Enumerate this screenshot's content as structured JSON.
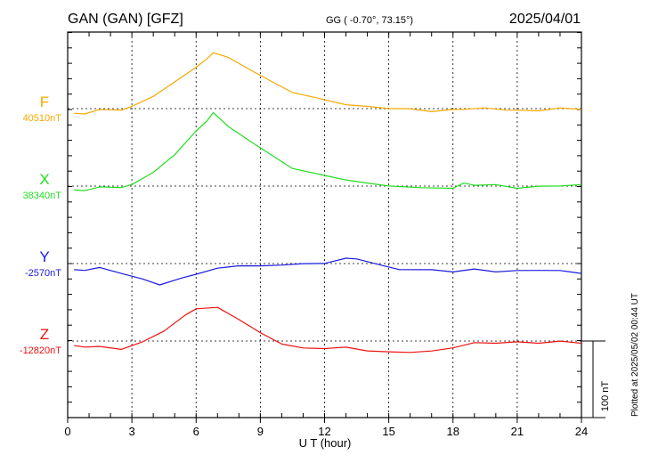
{
  "header": {
    "station": "GAN (GAN)  [GFZ]",
    "coords": "GG ( -0.70°,  73.15°)",
    "date": "2025/04/01"
  },
  "footer": {
    "plotted": "Plotted at 2025/05/02 00:44 UT",
    "scale_label": "100 nT"
  },
  "chart_data": {
    "type": "line",
    "xlabel": "U T (hour)",
    "xlim": [
      0,
      24
    ],
    "xticks": [
      "0",
      "3",
      "6",
      "9",
      "12",
      "15",
      "18",
      "21",
      "24"
    ],
    "scale_nT": 100,
    "grid": true,
    "series": [
      {
        "name": "F",
        "baseline_label": "40510nT",
        "color": "#f5a800",
        "x": [
          0.3,
          0.8,
          1.5,
          2.5,
          3,
          4,
          5,
          6,
          6.5,
          6.8,
          7.5,
          8.5,
          9.5,
          10.5,
          11.5,
          13,
          14,
          15,
          16,
          17,
          18,
          18.5,
          19.5,
          20.5,
          21,
          22,
          23,
          24
        ],
        "y": [
          -7,
          -6,
          -2,
          -1,
          2,
          17,
          34,
          55,
          64,
          74,
          66,
          52,
          35,
          22,
          14,
          6,
          2,
          1,
          -1,
          -3,
          -2,
          0,
          0,
          -1,
          -3,
          -2,
          0,
          0
        ]
      },
      {
        "name": "X",
        "baseline_label": "38340nT",
        "color": "#22dd22",
        "x": [
          0.3,
          0.8,
          1.5,
          2.5,
          3,
          4,
          5,
          6,
          6.5,
          6.8,
          7.5,
          8.5,
          9.5,
          10.5,
          12,
          13,
          14,
          15,
          16.5,
          18,
          18.5,
          19,
          20,
          21,
          22,
          23,
          24
        ],
        "y": [
          -6,
          -5,
          -2,
          -1,
          1,
          19,
          40,
          73,
          84,
          97,
          77,
          60,
          40,
          24,
          13,
          9,
          3,
          1,
          -3,
          -2,
          3,
          2,
          1,
          -2,
          -1,
          1,
          1
        ]
      },
      {
        "name": "Y",
        "baseline_label": "-2570nT",
        "color": "#1a1add",
        "x": [
          0.3,
          0.8,
          1.5,
          2.5,
          3.5,
          4.3,
          5.3,
          6,
          7,
          8,
          9,
          10,
          11,
          12,
          13,
          13.5,
          14.5,
          15.5,
          17,
          18,
          19,
          20,
          21,
          22,
          23,
          24
        ],
        "y": [
          -9,
          -8,
          -6,
          -12,
          -21,
          -27,
          -20,
          -13,
          -7,
          -2,
          -4,
          -1,
          -1,
          1,
          6,
          7,
          -2,
          -7,
          -9,
          -10,
          -8,
          -10,
          -10,
          -8,
          -10,
          -12
        ]
      },
      {
        "name": "Z",
        "baseline_label": "-12820nT",
        "color": "#ee1111",
        "x": [
          0.3,
          0.8,
          1.5,
          2.5,
          3.5,
          4.5,
          5.5,
          6,
          7,
          8,
          9,
          10,
          11,
          12,
          13,
          14,
          15,
          16,
          17,
          18,
          19,
          20,
          21,
          22,
          23,
          24
        ],
        "y": [
          -7,
          -7,
          -8,
          -10,
          -2,
          14,
          33,
          43,
          43,
          29,
          10,
          -3,
          -10,
          -9,
          -9,
          -12,
          -15,
          -14,
          -14,
          -8,
          -3,
          -2,
          -2,
          -2,
          -1,
          -2
        ]
      }
    ]
  }
}
